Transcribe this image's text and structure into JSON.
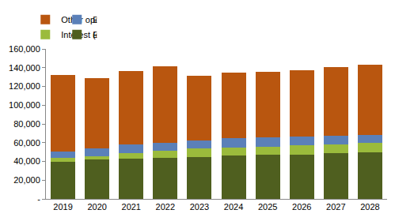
{
  "chart_data": {
    "type": "bar",
    "stacked": true,
    "categories": [
      "2019",
      "2020",
      "2021",
      "2022",
      "2023",
      "2024",
      "2025",
      "2026",
      "2027",
      "2028"
    ],
    "series": [
      {
        "name": "Employee costs",
        "color": "#4f5f1f",
        "values": [
          40000,
          42000,
          43000,
          44000,
          45000,
          46000,
          47000,
          47500,
          48500,
          49500
        ]
      },
      {
        "name": "Interest (debt servicing)",
        "color": "#9bbb3c",
        "values": [
          4000,
          3500,
          6000,
          7500,
          8500,
          9000,
          9000,
          9500,
          9500,
          10000
        ]
      },
      {
        "name": "Depreciation & amortisation",
        "color": "#5b80b8",
        "values": [
          6500,
          8500,
          9000,
          8500,
          9000,
          9500,
          9500,
          9500,
          9000,
          8500
        ]
      },
      {
        "name": "Other operating expenditure",
        "color": "#b9560f",
        "values": [
          82000,
          74500,
          78500,
          81500,
          68500,
          70000,
          70500,
          71000,
          74000,
          75500
        ]
      }
    ],
    "ylim": [
      0,
      160000
    ],
    "yticks": [
      {
        "value": 0,
        "label": "-"
      },
      {
        "value": 20000,
        "label": "20,000"
      },
      {
        "value": 40000,
        "label": "40,000"
      },
      {
        "value": 60000,
        "label": "60,000"
      },
      {
        "value": 80000,
        "label": "80,000"
      },
      {
        "value": 100000,
        "label": "100,000"
      },
      {
        "value": 120000,
        "label": "120,000"
      },
      {
        "value": 140000,
        "label": "140,000"
      },
      {
        "value": 160000,
        "label": "160,000"
      }
    ],
    "grid": false,
    "legend": "top"
  }
}
